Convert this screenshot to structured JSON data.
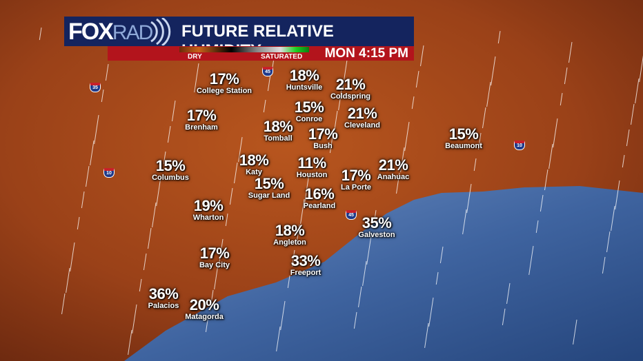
{
  "header": {
    "logo_fox": "FOX",
    "logo_rad": "RAD",
    "title": "FUTURE RELATIVE HUMIDITY",
    "scale_dry": "DRY",
    "scale_saturated": "SATURATED",
    "time": "MON 4:15 PM"
  },
  "colors": {
    "header_bg": "#14245e",
    "time_bar": "#b3141c",
    "land": "#a04a1c",
    "water": "#4a6fa8"
  },
  "highways": [
    "35",
    "45",
    "45",
    "10",
    "10"
  ],
  "cities": [
    {
      "name": "College Station",
      "value": "17%"
    },
    {
      "name": "Huntsville",
      "value": "18%"
    },
    {
      "name": "Coldspring",
      "value": "21%"
    },
    {
      "name": "Brenham",
      "value": "17%"
    },
    {
      "name": "Conroe",
      "value": "15%"
    },
    {
      "name": "Cleveland",
      "value": "21%"
    },
    {
      "name": "Tomball",
      "value": "18%"
    },
    {
      "name": "Bush",
      "value": "17%"
    },
    {
      "name": "Beaumont",
      "value": "15%"
    },
    {
      "name": "Katy",
      "value": "18%"
    },
    {
      "name": "Columbus",
      "value": "15%"
    },
    {
      "name": "Houston",
      "value": "11%"
    },
    {
      "name": "La Porte",
      "value": "17%"
    },
    {
      "name": "Anahuac",
      "value": "21%"
    },
    {
      "name": "Sugar Land",
      "value": "15%"
    },
    {
      "name": "Pearland",
      "value": "16%"
    },
    {
      "name": "Wharton",
      "value": "19%"
    },
    {
      "name": "Galveston",
      "value": "35%"
    },
    {
      "name": "Angleton",
      "value": "18%"
    },
    {
      "name": "Bay City",
      "value": "17%"
    },
    {
      "name": "Freeport",
      "value": "33%"
    },
    {
      "name": "Palacios",
      "value": "36%"
    },
    {
      "name": "Matagorda",
      "value": "20%"
    }
  ]
}
